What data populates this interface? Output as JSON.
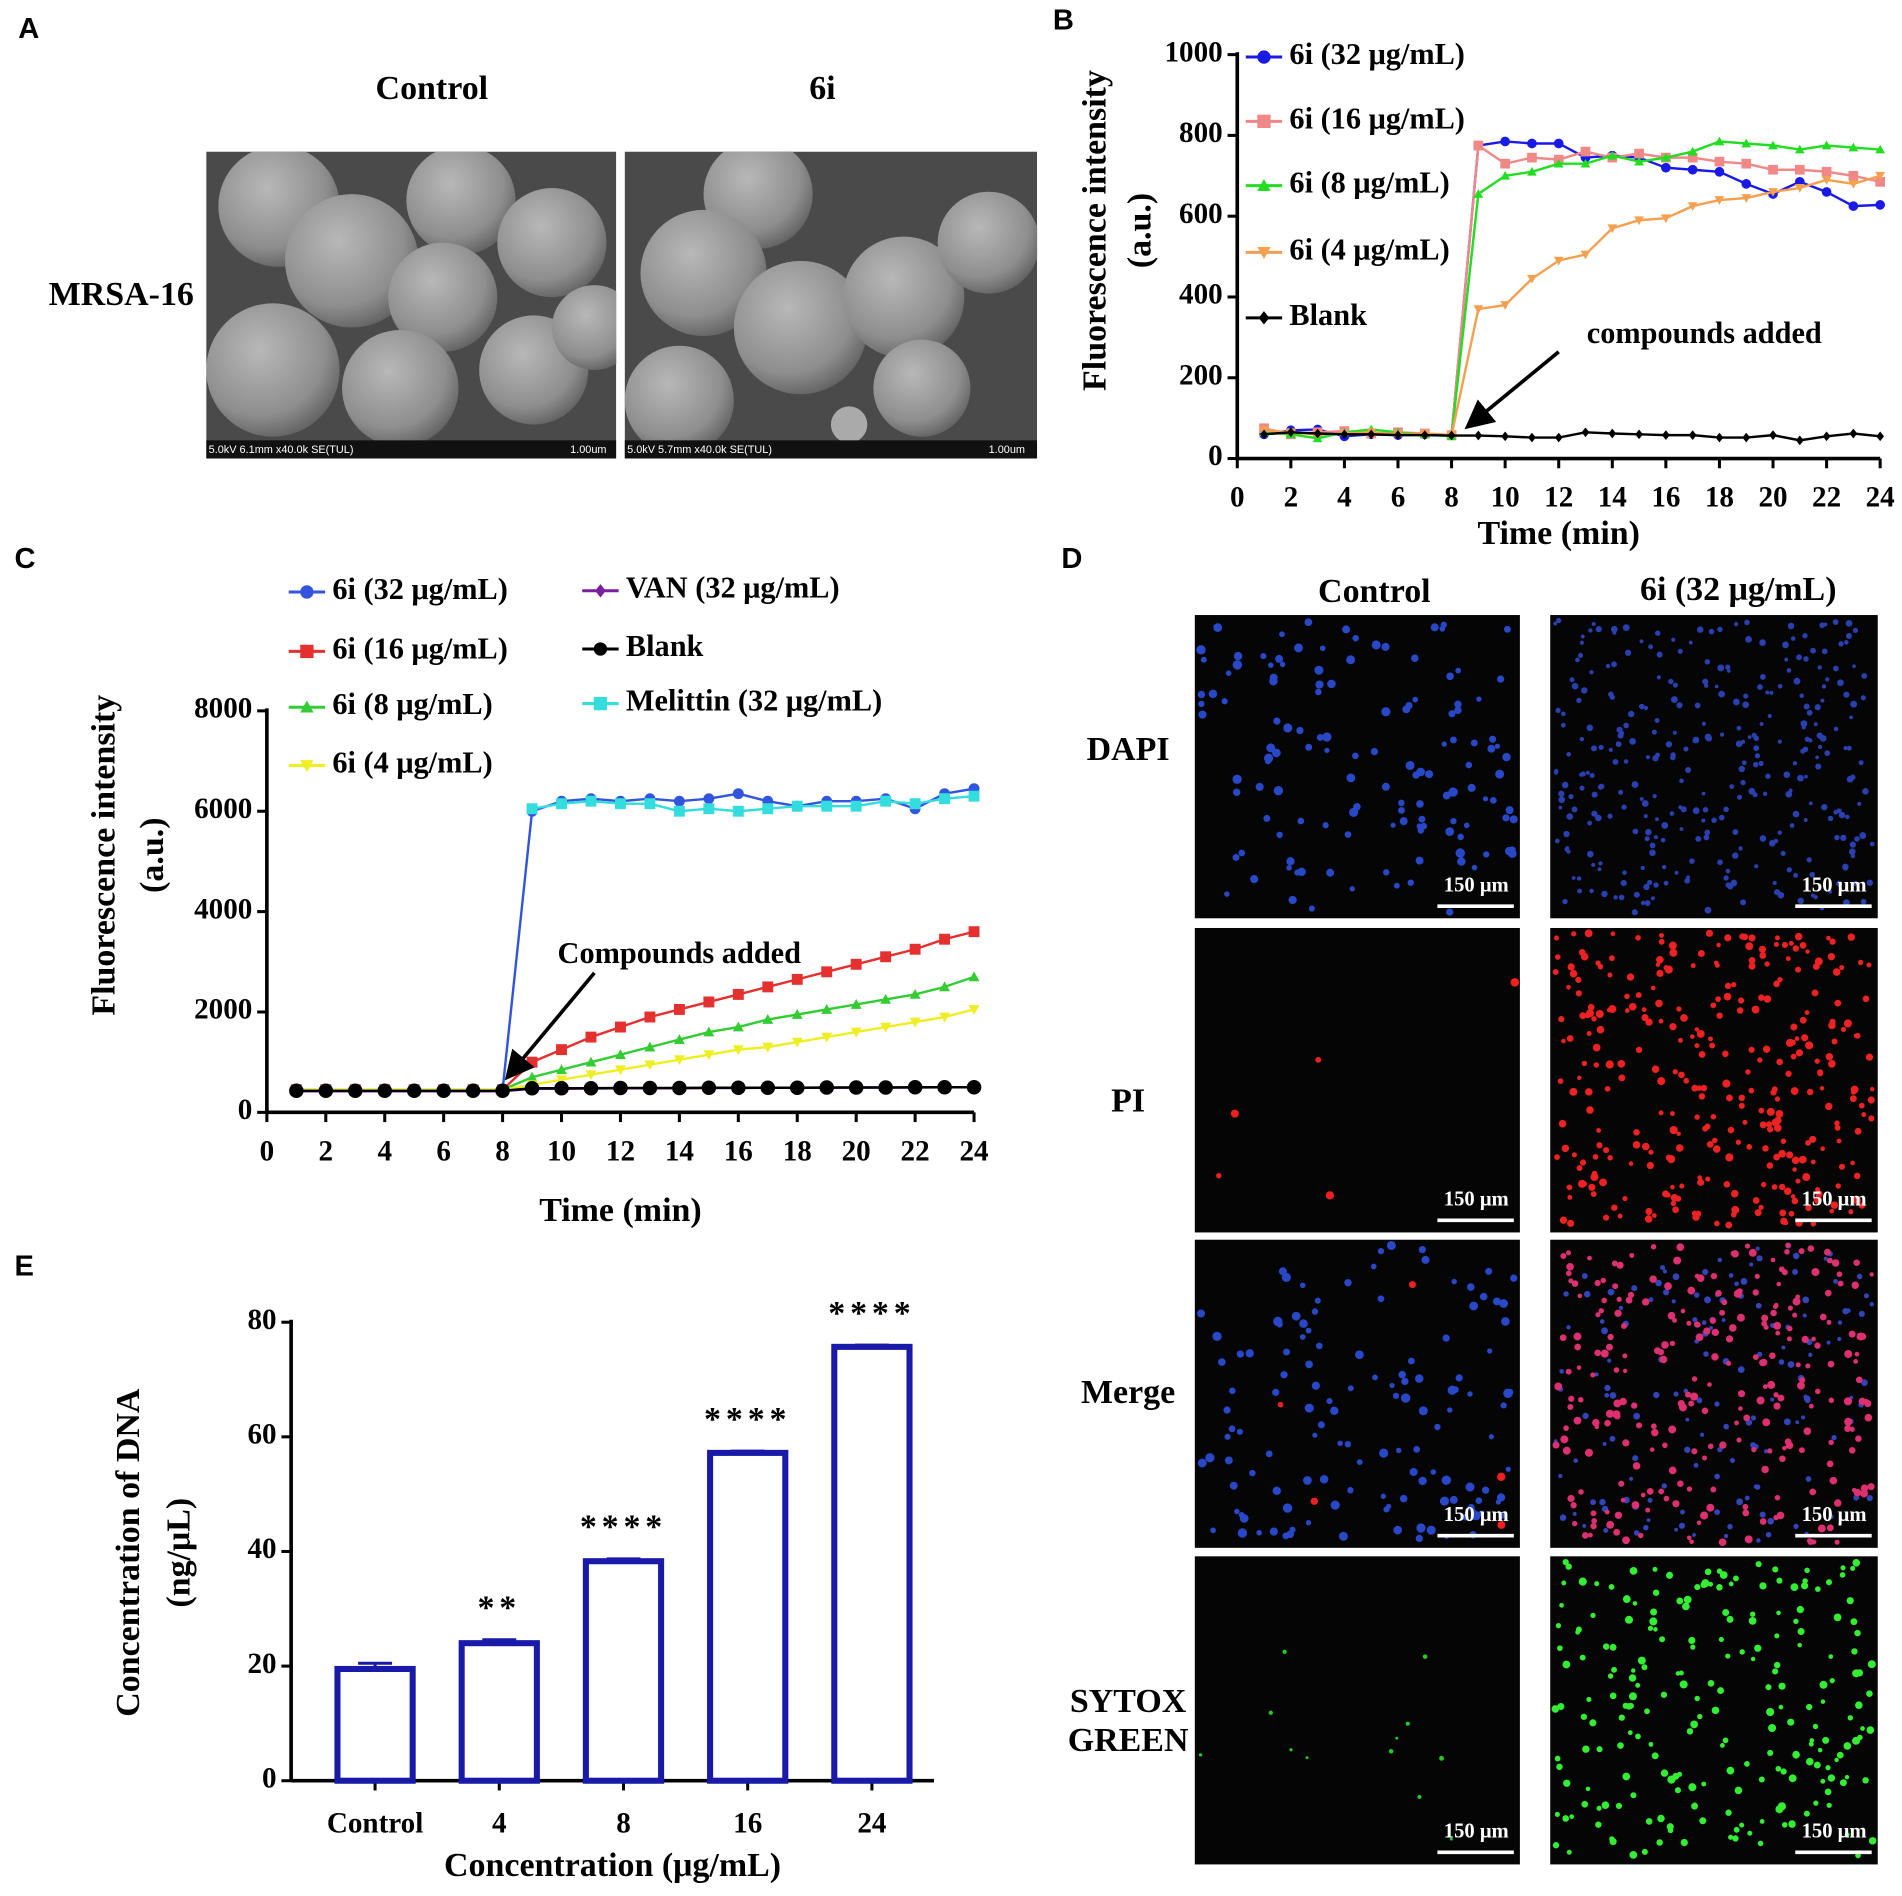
{
  "panel_labels": [
    "A",
    "B",
    "C",
    "D",
    "E"
  ],
  "panel_a": {
    "columns": [
      "Control",
      "6i"
    ],
    "row": "MRSA-16",
    "captions": [
      [
        "5.0kV 6.1mm x40.0k SE(TUL)",
        "1.00um"
      ],
      [
        "5.0kV 5.7mm x40.0k SE(TUL)",
        "1.00um"
      ]
    ]
  },
  "panel_d": {
    "columns": [
      "Control",
      "6i (32 μg/mL)"
    ],
    "rows": [
      [
        "DAPI"
      ],
      [
        "PI"
      ],
      [
        "Merge"
      ],
      [
        "SYTOX",
        "GREEN"
      ]
    ],
    "scale_bar": "150 μm"
  },
  "chart_data": [
    {
      "type": "line",
      "xlabel": "Time (min)",
      "ylabel": [
        "Fluorescence intensity",
        "(a.u.)"
      ],
      "annotation": "compounds added",
      "x": [
        1,
        2,
        3,
        4,
        5,
        6,
        7,
        8,
        9,
        10,
        11,
        12,
        13,
        14,
        15,
        16,
        17,
        18,
        19,
        20,
        21,
        22,
        23,
        24
      ],
      "xlim": [
        0,
        24
      ],
      "xticks": [
        0,
        2,
        4,
        6,
        8,
        10,
        12,
        14,
        16,
        18,
        20,
        22,
        24
      ],
      "ylim": [
        0,
        1000
      ],
      "yticks": [
        0,
        200,
        400,
        600,
        800,
        1000
      ],
      "series": [
        {
          "name": "6i (32 μg/mL)",
          "color": "#1a1ae6",
          "marker": "circle",
          "values": [
            60,
            70,
            72,
            55,
            60,
            58,
            60,
            58,
            775,
            785,
            780,
            780,
            745,
            750,
            745,
            720,
            715,
            710,
            680,
            655,
            685,
            660,
            625,
            628
          ]
        },
        {
          "name": "6i (16 μg/mL)",
          "color": "#f08888",
          "marker": "square",
          "values": [
            75,
            60,
            65,
            68,
            62,
            65,
            62,
            58,
            775,
            730,
            745,
            740,
            760,
            745,
            755,
            745,
            745,
            735,
            730,
            715,
            715,
            710,
            700,
            685
          ]
        },
        {
          "name": "6i (8 μg/mL)",
          "color": "#22dd22",
          "marker": "triangle",
          "values": [
            65,
            60,
            50,
            65,
            72,
            65,
            60,
            55,
            655,
            700,
            710,
            730,
            730,
            750,
            735,
            745,
            760,
            785,
            780,
            775,
            765,
            775,
            770,
            765
          ]
        },
        {
          "name": "6i (4 μg/mL)",
          "color": "#f5a050",
          "marker": "triangle-down",
          "values": [
            70,
            65,
            60,
            62,
            65,
            60,
            62,
            58,
            370,
            380,
            445,
            490,
            505,
            570,
            590,
            595,
            625,
            640,
            645,
            660,
            670,
            690,
            680,
            700
          ]
        },
        {
          "name": "Blank",
          "color": "#000000",
          "marker": "diamond",
          "values": [
            60,
            65,
            62,
            60,
            60,
            58,
            58,
            57,
            57,
            55,
            52,
            52,
            65,
            62,
            60,
            58,
            58,
            52,
            52,
            58,
            45,
            55,
            62,
            55
          ]
        }
      ]
    },
    {
      "type": "line",
      "xlabel": "Time (min)",
      "ylabel": [
        "Fluorescence intensity",
        "(a.u.)"
      ],
      "annotation": "Compounds added",
      "x": [
        1,
        2,
        3,
        4,
        5,
        6,
        7,
        8,
        9,
        10,
        11,
        12,
        13,
        14,
        15,
        16,
        17,
        18,
        19,
        20,
        21,
        22,
        23,
        24
      ],
      "xlim": [
        0,
        24
      ],
      "xticks": [
        0,
        2,
        4,
        6,
        8,
        10,
        12,
        14,
        16,
        18,
        20,
        22,
        24
      ],
      "ylim": [
        0,
        8000
      ],
      "yticks": [
        0,
        2000,
        4000,
        6000,
        8000
      ],
      "series": [
        {
          "name": "6i (32 μg/mL)",
          "color": "#3355dd",
          "marker": "circle",
          "values": [
            450,
            450,
            450,
            450,
            450,
            450,
            450,
            450,
            6000,
            6200,
            6250,
            6200,
            6250,
            6200,
            6250,
            6350,
            6200,
            6100,
            6200,
            6200,
            6250,
            6050,
            6350,
            6450
          ]
        },
        {
          "name": "6i (16 μg/mL)",
          "color": "#e53030",
          "marker": "square",
          "values": [
            450,
            450,
            450,
            450,
            450,
            450,
            450,
            450,
            1000,
            1250,
            1500,
            1700,
            1900,
            2050,
            2200,
            2350,
            2500,
            2650,
            2800,
            2950,
            3100,
            3250,
            3450,
            3600
          ]
        },
        {
          "name": "6i (8 μg/mL)",
          "color": "#33cc33",
          "marker": "triangle",
          "values": [
            450,
            450,
            450,
            450,
            450,
            450,
            450,
            450,
            700,
            850,
            1000,
            1150,
            1300,
            1450,
            1600,
            1700,
            1850,
            1950,
            2050,
            2150,
            2250,
            2350,
            2500,
            2700
          ]
        },
        {
          "name": "6i (4 μg/mL)",
          "color": "#eeee22",
          "marker": "triangle-down",
          "values": [
            450,
            450,
            450,
            450,
            450,
            450,
            450,
            450,
            550,
            650,
            750,
            850,
            950,
            1050,
            1150,
            1250,
            1300,
            1400,
            1500,
            1600,
            1700,
            1800,
            1900,
            2050
          ]
        },
        {
          "name": "VAN (32 μg/mL)",
          "color": "#7a1fa0",
          "marker": "diamond",
          "values": [
            420,
            420,
            420,
            420,
            420,
            420,
            420,
            420,
            470,
            470,
            475,
            480,
            480,
            480,
            485,
            485,
            490,
            490,
            490,
            495,
            495,
            495,
            500,
            500
          ]
        },
        {
          "name": "Blank",
          "color": "#000000",
          "marker": "circle",
          "values": [
            430,
            430,
            430,
            430,
            430,
            430,
            430,
            430,
            480,
            480,
            480,
            485,
            485,
            485,
            490,
            490,
            490,
            490,
            495,
            495,
            495,
            500,
            500,
            500
          ]
        },
        {
          "name": "Melittin (32 μg/mL)",
          "color": "#33dddd",
          "marker": "square",
          "values": [
            null,
            null,
            null,
            null,
            null,
            null,
            null,
            null,
            6050,
            6150,
            6200,
            6150,
            6150,
            6000,
            6050,
            6000,
            6050,
            6100,
            6100,
            6100,
            6200,
            6150,
            6250,
            6300
          ]
        }
      ]
    },
    {
      "type": "bar",
      "xlabel": "Concentration  (μg/mL)",
      "ylabel": [
        "Concentration of DNA",
        "(ng/μL)"
      ],
      "categories": [
        "Control",
        "4",
        "8",
        "16",
        "24"
      ],
      "values": [
        19.5,
        24,
        38.3,
        57.2,
        75.7
      ],
      "errors": [
        1,
        0.6,
        0.4,
        0.3,
        0.3
      ],
      "significance": [
        null,
        "**",
        "****",
        "****",
        "****"
      ],
      "color": "#1a1aa8",
      "ylim": [
        0,
        80
      ],
      "yticks": [
        0,
        20,
        40,
        60,
        80
      ]
    }
  ]
}
